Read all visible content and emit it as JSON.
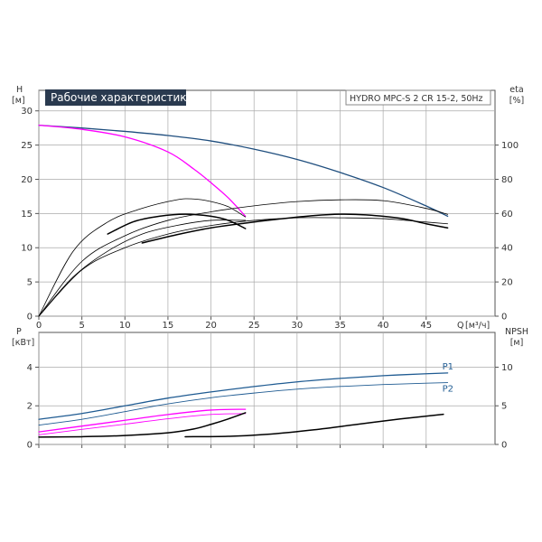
{
  "title": "Рабочие характеристики",
  "model": "HYDRO MPC-S 2 CR 15-2, 50Hz",
  "colors": {
    "head_blue": "#1f4e7e",
    "head_magenta": "#ff00ff",
    "power_blue": "#1f5b92",
    "black": "#000000",
    "grid": "#aaaaaa",
    "title_bg": "#2a3a4f"
  },
  "chart_data": [
    {
      "type": "line",
      "panel": "top",
      "x_label": "Q",
      "x_unit": "[м³/ч]",
      "x_ticks": [
        0,
        5,
        10,
        15,
        20,
        25,
        30,
        35,
        40,
        45
      ],
      "xlim": [
        0,
        53
      ],
      "y_left": {
        "label": "H",
        "unit": "[м]",
        "ticks": [
          0,
          5,
          10,
          15,
          20,
          25,
          30
        ],
        "lim": [
          0,
          33
        ]
      },
      "y_right": {
        "label": "eta",
        "unit": "[%]",
        "ticks": [
          0,
          20,
          40,
          60,
          80,
          100
        ],
        "lim": [
          0,
          132
        ]
      },
      "grid": true,
      "series": [
        {
          "axis": "left",
          "color": "head_blue",
          "width": 1.3,
          "x": [
            0,
            5,
            10,
            15,
            20,
            25,
            30,
            35,
            40,
            45,
            47.5
          ],
          "y": [
            27.9,
            27.5,
            27.0,
            26.4,
            25.6,
            24.4,
            22.9,
            21.0,
            18.8,
            16.1,
            14.6
          ]
        },
        {
          "axis": "left",
          "color": "head_magenta",
          "width": 1.3,
          "x": [
            0,
            5,
            10,
            15,
            18,
            20,
            22,
            24
          ],
          "y": [
            27.9,
            27.3,
            26.2,
            24.0,
            21.5,
            19.5,
            17.3,
            14.6
          ]
        },
        {
          "axis": "right",
          "color": "black",
          "width": 0.8,
          "x": [
            0,
            4,
            8,
            12,
            16,
            18,
            20,
            22,
            24
          ],
          "y": [
            0,
            38,
            55,
            63,
            68,
            68.5,
            67,
            64,
            58
          ]
        },
        {
          "axis": "right",
          "color": "black",
          "width": 0.8,
          "x": [
            0,
            5,
            10,
            15,
            20,
            25,
            30,
            35,
            40,
            45,
            47.5
          ],
          "y": [
            0,
            32,
            47,
            56,
            61,
            64.5,
            67,
            68,
            67.5,
            63,
            59.5
          ]
        },
        {
          "axis": "right",
          "color": "black",
          "width": 0.8,
          "x": [
            0,
            4,
            8,
            12,
            16,
            20,
            24
          ],
          "y": [
            0,
            23,
            38,
            48,
            53,
            56,
            56
          ]
        },
        {
          "axis": "right",
          "color": "black",
          "width": 0.8,
          "x": [
            0,
            5,
            10,
            15,
            20,
            25,
            30,
            35,
            40,
            45,
            47.5
          ],
          "y": [
            0,
            27,
            40,
            48,
            53,
            56,
            57.5,
            57.5,
            57,
            55,
            54
          ]
        },
        {
          "axis": "left",
          "color": "black",
          "width": 1.5,
          "x": [
            8,
            11,
            14,
            17,
            20,
            22,
            24
          ],
          "y": [
            12.0,
            13.8,
            14.6,
            14.9,
            14.6,
            14.0,
            12.8
          ]
        },
        {
          "axis": "left",
          "color": "black",
          "width": 1.5,
          "x": [
            12,
            16,
            20,
            24,
            28,
            32,
            35,
            38,
            42,
            45,
            47.5
          ],
          "y": [
            10.7,
            11.9,
            12.9,
            13.6,
            14.2,
            14.7,
            14.9,
            14.8,
            14.3,
            13.5,
            12.9
          ]
        }
      ]
    },
    {
      "type": "line",
      "panel": "bottom",
      "x_ticks": [
        0,
        5,
        10,
        15,
        20,
        25,
        30,
        35,
        40,
        45
      ],
      "xlim": [
        0,
        53
      ],
      "y_left": {
        "label": "P",
        "unit": "[кВт]",
        "ticks": [
          0,
          2,
          4
        ],
        "lim": [
          0,
          5.8
        ]
      },
      "y_right": {
        "label": "NPSH",
        "unit": "[м]",
        "ticks": [
          0,
          5,
          10
        ],
        "lim": [
          0,
          14.5
        ]
      },
      "grid": true,
      "series": [
        {
          "axis": "left",
          "color": "power_blue",
          "width": 1.3,
          "name": "P1",
          "x": [
            0,
            5,
            10,
            15,
            20,
            25,
            30,
            35,
            40,
            45,
            47.5
          ],
          "y": [
            1.3,
            1.6,
            2.0,
            2.4,
            2.72,
            3.0,
            3.24,
            3.42,
            3.56,
            3.66,
            3.7
          ]
        },
        {
          "axis": "left",
          "color": "power_blue",
          "width": 0.9,
          "name": "P2",
          "x": [
            0,
            5,
            10,
            15,
            20,
            25,
            30,
            35,
            40,
            45,
            47.5
          ],
          "y": [
            1.0,
            1.3,
            1.7,
            2.1,
            2.42,
            2.66,
            2.86,
            3.0,
            3.1,
            3.17,
            3.2
          ]
        },
        {
          "axis": "left",
          "color": "head_magenta",
          "width": 1.3,
          "x": [
            0,
            5,
            10,
            15,
            20,
            24
          ],
          "y": [
            0.65,
            0.95,
            1.25,
            1.55,
            1.78,
            1.82
          ]
        },
        {
          "axis": "left",
          "color": "head_magenta",
          "width": 0.9,
          "x": [
            0,
            5,
            10,
            15,
            20,
            24
          ],
          "y": [
            0.5,
            0.78,
            1.05,
            1.33,
            1.55,
            1.6
          ]
        },
        {
          "axis": "right",
          "color": "black",
          "width": 1.5,
          "x": [
            0,
            5,
            10,
            15,
            18,
            20,
            22,
            24
          ],
          "y": [
            0.95,
            1.0,
            1.15,
            1.5,
            2.0,
            2.6,
            3.3,
            4.1
          ]
        },
        {
          "axis": "right",
          "color": "black",
          "width": 1.5,
          "x": [
            17,
            22,
            27,
            32,
            37,
            42,
            47
          ],
          "y": [
            1.0,
            1.05,
            1.35,
            1.9,
            2.6,
            3.3,
            3.9
          ]
        }
      ]
    }
  ]
}
